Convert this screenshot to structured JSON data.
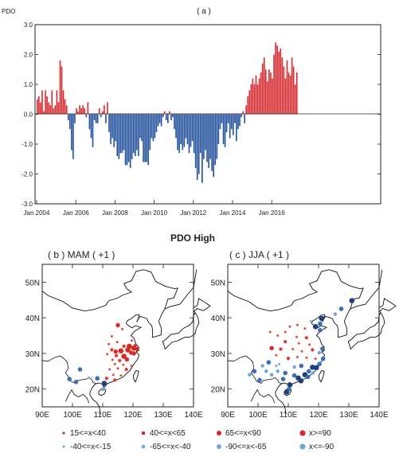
{
  "title": "PDO High",
  "colors": {
    "positive": "#d8262b",
    "negative": "#1f4e9c",
    "land": "#ffffff",
    "coast": "#111111"
  },
  "chart_data": [
    {
      "type": "bar",
      "panel": "( a )",
      "ylabel": "PDO",
      "ylim": [
        -3.0,
        3.0
      ],
      "yticks": [
        "3.0",
        "2.0",
        "1.0",
        "0.0",
        "-1.0",
        "-2.0",
        "-3.0"
      ],
      "xticks": [
        "Jan 2004",
        "Jan 2006",
        "Jan 2008",
        "Jan 2010",
        "Jan 2012",
        "Jan 2014",
        "Jan 2016"
      ],
      "x_start": "Jan 2004",
      "values": [
        0.5,
        0.6,
        0.4,
        0.8,
        0.1,
        0.8,
        0.6,
        0.4,
        0.3,
        0.8,
        0.2,
        0.3,
        0.8,
        0.4,
        1.8,
        1.6,
        0.8,
        0.5,
        0.3,
        -0.2,
        -0.5,
        -1.2,
        -1.5,
        -0.3,
        0.2,
        0.1,
        0.3,
        0.2,
        0.3,
        0.2,
        -0.1,
        0.4,
        -0.5,
        -0.8,
        -1.1,
        -0.2,
        -0.3,
        -0.3,
        0.2,
        -0.1,
        0.1,
        0.3,
        -0.3,
        0.4,
        -0.6,
        -1.0,
        -0.8,
        -1.1,
        -0.9,
        -1.4,
        -1.5,
        -1.3,
        -1.3,
        -1.2,
        -1.7,
        -1.7,
        -1.6,
        -1.8,
        -1.5,
        -1.3,
        -1.4,
        -1.2,
        -1.4,
        -0.8,
        -0.9,
        -1.6,
        -1.6,
        -1.6,
        -1.7,
        -1.2,
        -0.8,
        -0.9,
        -0.8,
        -0.6,
        -0.4,
        -0.3,
        -0.4,
        -0.1,
        0.1,
        -0.2,
        -0.3,
        0.1,
        -0.2,
        -0.1,
        -0.5,
        -0.8,
        -1.2,
        -1.3,
        -1.0,
        -1.2,
        -1.1,
        -0.8,
        -1.0,
        -1.3,
        -1.1,
        -0.9,
        -1.3,
        -1.8,
        -2.2,
        -2.0,
        -1.3,
        -2.3,
        -1.5,
        -1.2,
        -1.6,
        -1.8,
        -1.5,
        -1.9,
        -2.1,
        -1.7,
        -1.5,
        -1.0,
        -0.5,
        -0.3,
        -1.0,
        -1.1,
        -0.6,
        -0.3,
        -0.8,
        -0.5,
        -0.7,
        -0.3,
        -0.9,
        -0.5,
        -0.4,
        -0.1,
        0.1,
        -0.3,
        0.3,
        0.6,
        0.8,
        1.0,
        1.2,
        1.0,
        1.3,
        1.0,
        1.2,
        1.4,
        1.7,
        1.9,
        1.5,
        1.1,
        1.5,
        1.4,
        1.2,
        2.0,
        2.4,
        2.3,
        2.1,
        2.2,
        1.9,
        1.6,
        1.2,
        1.8,
        1.4,
        1.3,
        1.9,
        1.6,
        1.0,
        1.4
      ],
      "series_colors": {
        "positive": "#d8262b",
        "negative": "#1f4e9c"
      },
      "grid": false
    },
    {
      "type": "scatter",
      "panel": "( b ) MAM ( +1 )",
      "xticks": [
        "90E",
        "100E",
        "110E",
        "120E",
        "130E",
        "140E"
      ],
      "yticks": [
        "20N",
        "30N",
        "40N",
        "50N"
      ],
      "xlim": [
        90,
        140
      ],
      "ylim": [
        15,
        55
      ],
      "points": [
        {
          "lon": 115.0,
          "lat": 37.9,
          "c": 2
        },
        {
          "lon": 113.0,
          "lat": 34.8,
          "c": 0
        },
        {
          "lon": 116.5,
          "lat": 36.8,
          "c": 0
        },
        {
          "lon": 112.0,
          "lat": 32.6,
          "c": 0
        },
        {
          "lon": 114.8,
          "lat": 33.2,
          "c": 0
        },
        {
          "lon": 119.6,
          "lat": 33.6,
          "c": 0
        },
        {
          "lon": 117.0,
          "lat": 32.0,
          "c": 1
        },
        {
          "lon": 118.8,
          "lat": 32.0,
          "c": 3
        },
        {
          "lon": 120.7,
          "lat": 32.2,
          "c": 1
        },
        {
          "lon": 116.0,
          "lat": 30.7,
          "c": 3
        },
        {
          "lon": 118.3,
          "lat": 31.0,
          "c": 3
        },
        {
          "lon": 120.3,
          "lat": 31.5,
          "c": 3
        },
        {
          "lon": 121.4,
          "lat": 31.2,
          "c": 2
        },
        {
          "lon": 113.0,
          "lat": 31.0,
          "c": 1
        },
        {
          "lon": 114.3,
          "lat": 30.5,
          "c": 2
        },
        {
          "lon": 119.4,
          "lat": 30.2,
          "c": 2
        },
        {
          "lon": 120.3,
          "lat": 30.0,
          "c": 2
        },
        {
          "lon": 117.0,
          "lat": 29.2,
          "c": 3
        },
        {
          "lon": 114.5,
          "lat": 29.4,
          "c": 1
        },
        {
          "lon": 111.5,
          "lat": 29.8,
          "c": 0
        },
        {
          "lon": 115.6,
          "lat": 28.0,
          "c": 1
        },
        {
          "lon": 118.0,
          "lat": 28.3,
          "c": 2
        },
        {
          "lon": 113.2,
          "lat": 28.2,
          "c": 0
        },
        {
          "lon": 116.8,
          "lat": 26.8,
          "c": 0
        },
        {
          "lon": 119.5,
          "lat": 26.5,
          "c": 0
        },
        {
          "lon": 114.0,
          "lat": 27.0,
          "c": 0
        },
        {
          "lon": 112.3,
          "lat": 25.5,
          "c": 0
        },
        {
          "lon": 115.0,
          "lat": 25.8,
          "c": 0
        },
        {
          "lon": 117.8,
          "lat": 25.5,
          "c": 1
        },
        {
          "lon": 113.5,
          "lat": 24.0,
          "c": 0
        },
        {
          "lon": 116.0,
          "lat": 23.8,
          "c": 0
        },
        {
          "lon": 111.3,
          "lat": 23.0,
          "c": 1
        },
        {
          "lon": 114.0,
          "lat": 22.5,
          "c": 1
        },
        {
          "lon": 102.5,
          "lat": 25.5,
          "c": 6
        },
        {
          "lon": 108.2,
          "lat": 23.0,
          "c": 6
        },
        {
          "lon": 101.2,
          "lat": 22.0,
          "c": 6
        },
        {
          "lon": 99.0,
          "lat": 22.8,
          "c": 6
        },
        {
          "lon": 110.5,
          "lat": 21.6,
          "c": 7
        },
        {
          "lon": 110.0,
          "lat": 19.9,
          "c": 5
        },
        {
          "lon": 105.5,
          "lat": 23.2,
          "c": 4
        }
      ]
    },
    {
      "type": "scatter",
      "panel": "( c ) JJA ( +1 )",
      "xticks": [
        "90E",
        "100E",
        "110E",
        "120E",
        "130E",
        "140E"
      ],
      "yticks": [
        "20N",
        "30N",
        "40N",
        "50N"
      ],
      "xlim": [
        90,
        140
      ],
      "ylim": [
        15,
        55
      ],
      "points": [
        {
          "lon": 131.0,
          "lat": 44.8,
          "c": 7
        },
        {
          "lon": 127.5,
          "lat": 42.5,
          "c": 6
        },
        {
          "lon": 125.5,
          "lat": 41.0,
          "c": 5
        },
        {
          "lon": 121.0,
          "lat": 39.8,
          "c": 7
        },
        {
          "lon": 120.5,
          "lat": 38.3,
          "c": 6
        },
        {
          "lon": 117.5,
          "lat": 39.0,
          "c": 4
        },
        {
          "lon": 119.0,
          "lat": 37.5,
          "c": 7
        },
        {
          "lon": 120.5,
          "lat": 36.5,
          "c": 6
        },
        {
          "lon": 115.5,
          "lat": 37.0,
          "c": 0
        },
        {
          "lon": 113.0,
          "lat": 38.0,
          "c": 0
        },
        {
          "lon": 110.5,
          "lat": 37.5,
          "c": 0
        },
        {
          "lon": 109.0,
          "lat": 36.0,
          "c": 0
        },
        {
          "lon": 106.5,
          "lat": 35.0,
          "c": 0
        },
        {
          "lon": 104.0,
          "lat": 36.0,
          "c": 0
        },
        {
          "lon": 112.8,
          "lat": 34.6,
          "c": 0
        },
        {
          "lon": 116.0,
          "lat": 34.4,
          "c": 1
        },
        {
          "lon": 109.0,
          "lat": 33.3,
          "c": 1
        },
        {
          "lon": 113.5,
          "lat": 32.8,
          "c": 0
        },
        {
          "lon": 117.0,
          "lat": 32.5,
          "c": 0
        },
        {
          "lon": 104.5,
          "lat": 31.5,
          "c": 2
        },
        {
          "lon": 107.5,
          "lat": 31.2,
          "c": 1
        },
        {
          "lon": 111.5,
          "lat": 31.2,
          "c": 0
        },
        {
          "lon": 114.5,
          "lat": 30.6,
          "c": 0
        },
        {
          "lon": 118.0,
          "lat": 31.0,
          "c": 1
        },
        {
          "lon": 121.3,
          "lat": 31.3,
          "c": 6
        },
        {
          "lon": 120.2,
          "lat": 30.2,
          "c": 5
        },
        {
          "lon": 113.0,
          "lat": 29.0,
          "c": 0
        },
        {
          "lon": 116.0,
          "lat": 28.8,
          "c": 0
        },
        {
          "lon": 119.0,
          "lat": 28.5,
          "c": 0
        },
        {
          "lon": 106.0,
          "lat": 29.5,
          "c": 0
        },
        {
          "lon": 110.0,
          "lat": 28.6,
          "c": 1
        },
        {
          "lon": 121.5,
          "lat": 28.5,
          "c": 6
        },
        {
          "lon": 120.3,
          "lat": 27.0,
          "c": 6
        },
        {
          "lon": 118.0,
          "lat": 26.1,
          "c": 7
        },
        {
          "lon": 119.3,
          "lat": 26.0,
          "c": 7
        },
        {
          "lon": 116.8,
          "lat": 25.0,
          "c": 6
        },
        {
          "lon": 118.1,
          "lat": 24.5,
          "c": 5
        },
        {
          "lon": 114.3,
          "lat": 26.5,
          "c": 6
        },
        {
          "lon": 112.0,
          "lat": 26.2,
          "c": 5
        },
        {
          "lon": 115.5,
          "lat": 24.0,
          "c": 7
        },
        {
          "lon": 113.3,
          "lat": 23.1,
          "c": 7
        },
        {
          "lon": 114.2,
          "lat": 22.3,
          "c": 7
        },
        {
          "lon": 116.5,
          "lat": 23.4,
          "c": 6
        },
        {
          "lon": 112.0,
          "lat": 23.8,
          "c": 6
        },
        {
          "lon": 110.5,
          "lat": 21.2,
          "c": 7
        },
        {
          "lon": 109.5,
          "lat": 19.2,
          "c": 7
        },
        {
          "lon": 110.3,
          "lat": 20.0,
          "c": 6
        },
        {
          "lon": 108.3,
          "lat": 22.8,
          "c": 6
        },
        {
          "lon": 106.5,
          "lat": 25.0,
          "c": 5
        },
        {
          "lon": 109.0,
          "lat": 24.5,
          "c": 6
        },
        {
          "lon": 104.5,
          "lat": 24.0,
          "c": 5
        },
        {
          "lon": 102.7,
          "lat": 25.0,
          "c": 5
        },
        {
          "lon": 100.5,
          "lat": 22.5,
          "c": 6
        },
        {
          "lon": 98.8,
          "lat": 25.0,
          "c": 6
        },
        {
          "lon": 101.5,
          "lat": 26.5,
          "c": 5
        },
        {
          "lon": 103.5,
          "lat": 27.5,
          "c": 6
        },
        {
          "lon": 107.0,
          "lat": 27.0,
          "c": 4
        },
        {
          "lon": 106.0,
          "lat": 26.5,
          "c": 4
        },
        {
          "lon": 97.2,
          "lat": 24.0,
          "c": 5
        }
      ]
    }
  ],
  "legend": [
    {
      "label": "15<=x<40",
      "color": "#d8262b",
      "r": 1.6
    },
    {
      "label": "40<=x<65",
      "color": "#d8262b",
      "r": 2.3
    },
    {
      "label": "65<=x<90",
      "color": "#d8262b",
      "r": 3.0
    },
    {
      "label": "x>=90",
      "color": "#d8262b",
      "r": 3.6
    },
    {
      "label": "-40<=x<-15",
      "color": "#74a7d6",
      "r": 1.6
    },
    {
      "label": "-65<=x<-40",
      "color": "#74a7d6",
      "r": 2.3
    },
    {
      "label": "-90<=x<-65",
      "color": "#74a7d6",
      "r": 3.0
    },
    {
      "label": "x<=-90",
      "color": "#74a7d6",
      "r": 3.6
    }
  ],
  "map_styles": [
    {
      "color": "#e04a3f",
      "r": 1.5
    },
    {
      "color": "#dc3a31",
      "r": 2.1
    },
    {
      "color": "#d62a26",
      "r": 2.7
    },
    {
      "color": "#d62a26",
      "r": 3.3
    },
    {
      "color": "#7fb0dc",
      "r": 1.6
    },
    {
      "color": "#6aa4d8",
      "r": 2.2
    },
    {
      "color": "#3d6fb0",
      "r": 2.8
    },
    {
      "color": "#1f3f7f",
      "r": 3.3
    }
  ]
}
